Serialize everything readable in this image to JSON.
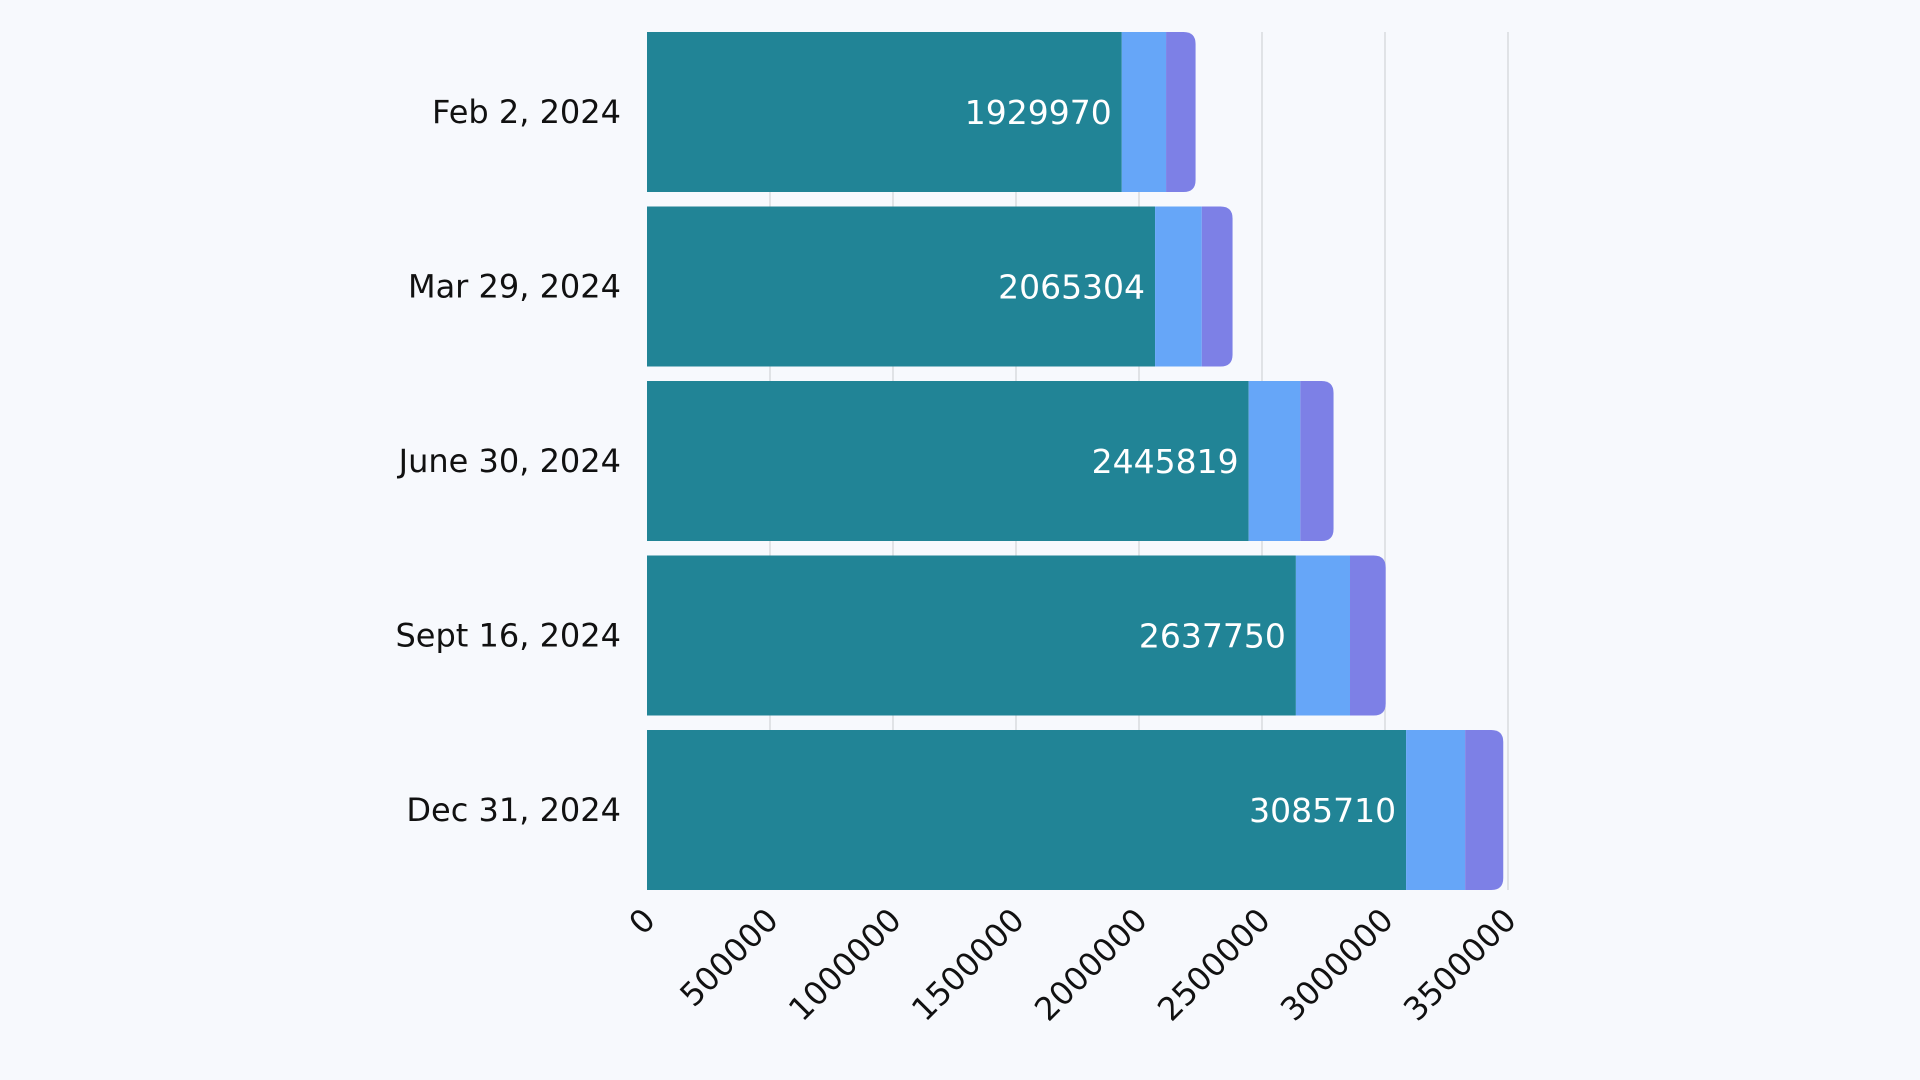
{
  "chart_data": {
    "type": "bar",
    "orientation": "horizontal",
    "stacked": true,
    "categories": [
      "Feb 2, 2024",
      "Mar 29, 2024",
      "June 30, 2024",
      "Sept 16, 2024",
      "Dec 31, 2024"
    ],
    "series": [
      {
        "values": [
          1929970,
          2065304,
          2445819,
          2637750,
          3085710
        ],
        "color": "#218496",
        "labels_shown": true
      },
      {
        "values": [
          180000,
          190000,
          210000,
          220000,
          240000
        ],
        "color": "#66a6f8",
        "labels_shown": false
      },
      {
        "values": [
          120000,
          125000,
          135000,
          145000,
          155000
        ],
        "color": "#7d80e6",
        "labels_shown": false
      }
    ],
    "x_ticks": [
      "0",
      "500000",
      "1000000",
      "1500000",
      "2000000",
      "2500000",
      "3000000",
      "3500000"
    ],
    "xlim": [
      0,
      3500000
    ],
    "grid": "vertical",
    "legend": "none",
    "title": "",
    "xlabel": "",
    "ylabel": "",
    "colors": {
      "background": "#f7f9fd",
      "gridline": "#d2d4d8",
      "axis_text": "#111111",
      "data_label": "#ffffff"
    }
  }
}
